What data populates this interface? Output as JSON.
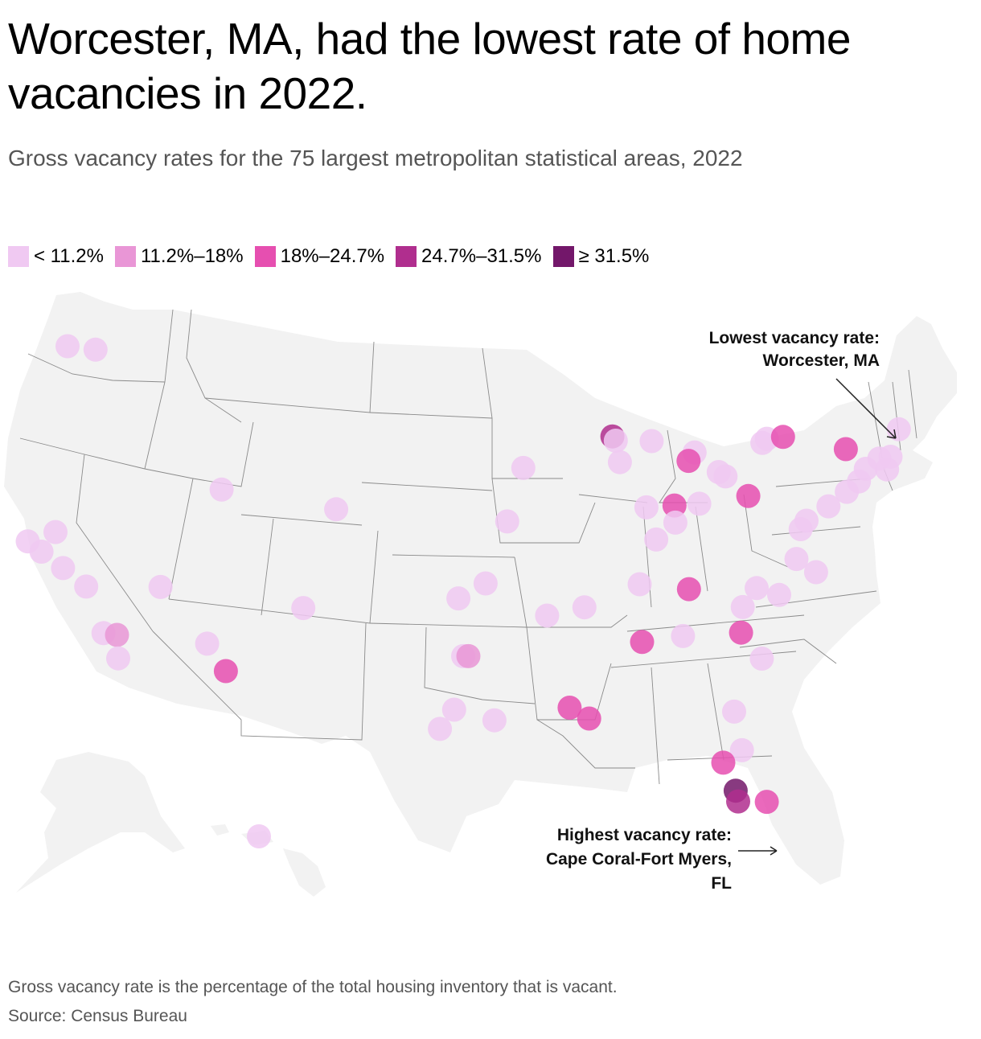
{
  "title": "Worcester, MA, had the lowest rate of home vacancies in 2022.",
  "subtitle": "Gross vacancy rates for the 75 largest metropolitan statistical areas, 2022",
  "legend": [
    {
      "label": "< 11.2%",
      "color": "#f0c9f2"
    },
    {
      "label": "11.2%–18%",
      "color": "#e996d6"
    },
    {
      "label": "18%–24.7%",
      "color": "#e64fb0"
    },
    {
      "label": "24.7%–31.5%",
      "color": "#b02e8e"
    },
    {
      "label": "≥ 31.5%",
      "color": "#73176a"
    }
  ],
  "annotations": {
    "lowest": {
      "line1": "Lowest vacancy rate:",
      "line2": "Worcester, MA"
    },
    "highest": {
      "line1": "Highest vacancy rate:",
      "line2": "Cape Coral-Fort Myers,",
      "line3": "FL"
    }
  },
  "map_data": {
    "type": "map",
    "region": "United States (contiguous, Alaska, Hawaii)",
    "metros": [
      {
        "lon": -122.3,
        "lat": 47.6,
        "cls": 0
      },
      {
        "lon": -120.5,
        "lat": 47.4,
        "cls": 0
      },
      {
        "lon": -123.3,
        "lat": 38.5,
        "cls": 0
      },
      {
        "lon": -121.7,
        "lat": 38.9,
        "cls": 0
      },
      {
        "lon": -122.4,
        "lat": 38.0,
        "cls": 0
      },
      {
        "lon": -121.0,
        "lat": 37.2,
        "cls": 0
      },
      {
        "lon": -119.5,
        "lat": 36.3,
        "cls": 0
      },
      {
        "lon": -118.2,
        "lat": 34.1,
        "cls": 0
      },
      {
        "lon": -117.4,
        "lat": 34.0,
        "cls": 1
      },
      {
        "lon": -117.2,
        "lat": 32.9,
        "cls": 0
      },
      {
        "lon": -115.1,
        "lat": 36.2,
        "cls": 0
      },
      {
        "lon": -111.9,
        "lat": 40.7,
        "cls": 0
      },
      {
        "lon": -112.1,
        "lat": 33.5,
        "cls": 0
      },
      {
        "lon": -110.9,
        "lat": 32.2,
        "cls": 2
      },
      {
        "lon": -104.9,
        "lat": 39.7,
        "cls": 0
      },
      {
        "lon": -106.6,
        "lat": 35.1,
        "cls": 0
      },
      {
        "lon": -94.6,
        "lat": 39.1,
        "cls": 0
      },
      {
        "lon": -97.5,
        "lat": 35.5,
        "cls": 0
      },
      {
        "lon": -95.9,
        "lat": 36.2,
        "cls": 0
      },
      {
        "lon": -97.2,
        "lat": 32.8,
        "cls": 0
      },
      {
        "lon": -96.9,
        "lat": 32.8,
        "cls": 1
      },
      {
        "lon": -95.4,
        "lat": 29.8,
        "cls": 0
      },
      {
        "lon": -97.7,
        "lat": 30.3,
        "cls": 0
      },
      {
        "lon": -98.5,
        "lat": 29.4,
        "cls": 0
      },
      {
        "lon": -93.6,
        "lat": 41.6,
        "cls": 0
      },
      {
        "lon": -92.3,
        "lat": 34.7,
        "cls": 0
      },
      {
        "lon": -90.1,
        "lat": 35.1,
        "cls": 0
      },
      {
        "lon": -91.1,
        "lat": 30.4,
        "cls": 2
      },
      {
        "lon": -90.0,
        "lat": 29.9,
        "cls": 2
      },
      {
        "lon": -88.1,
        "lat": 43.1,
        "cls": 3
      },
      {
        "lon": -87.9,
        "lat": 42.9,
        "cls": 0
      },
      {
        "lon": -87.7,
        "lat": 41.9,
        "cls": 0
      },
      {
        "lon": -85.7,
        "lat": 42.9,
        "cls": 0
      },
      {
        "lon": -83.1,
        "lat": 42.4,
        "cls": 0
      },
      {
        "lon": -83.5,
        "lat": 42.0,
        "cls": 2
      },
      {
        "lon": -81.7,
        "lat": 41.5,
        "cls": 0
      },
      {
        "lon": -81.3,
        "lat": 41.3,
        "cls": 0
      },
      {
        "lon": -86.2,
        "lat": 39.8,
        "cls": 0
      },
      {
        "lon": -84.5,
        "lat": 39.9,
        "cls": 2
      },
      {
        "lon": -84.5,
        "lat": 39.1,
        "cls": 0
      },
      {
        "lon": -83.0,
        "lat": 40.0,
        "cls": 0
      },
      {
        "lon": -85.7,
        "lat": 38.3,
        "cls": 0
      },
      {
        "lon": -86.8,
        "lat": 36.2,
        "cls": 0
      },
      {
        "lon": -83.9,
        "lat": 36.0,
        "cls": 2
      },
      {
        "lon": -86.8,
        "lat": 33.5,
        "cls": 2
      },
      {
        "lon": -84.4,
        "lat": 33.8,
        "cls": 0
      },
      {
        "lon": -80.0,
        "lat": 40.4,
        "cls": 2
      },
      {
        "lon": -78.9,
        "lat": 42.9,
        "cls": 0
      },
      {
        "lon": -78.6,
        "lat": 43.1,
        "cls": 0
      },
      {
        "lon": -77.6,
        "lat": 43.2,
        "cls": 2
      },
      {
        "lon": -73.8,
        "lat": 42.7,
        "cls": 2
      },
      {
        "lon": -71.8,
        "lat": 42.3,
        "cls": 0
      },
      {
        "lon": -71.1,
        "lat": 42.4,
        "cls": 0
      },
      {
        "lon": -70.4,
        "lat": 43.7,
        "cls": 0
      },
      {
        "lon": -72.7,
        "lat": 41.8,
        "cls": 0
      },
      {
        "lon": -71.4,
        "lat": 41.8,
        "cls": 0
      },
      {
        "lon": -73.2,
        "lat": 41.2,
        "cls": 0
      },
      {
        "lon": -74.0,
        "lat": 40.7,
        "cls": 0
      },
      {
        "lon": -75.2,
        "lat": 40.0,
        "cls": 0
      },
      {
        "lon": -76.6,
        "lat": 39.3,
        "cls": 0
      },
      {
        "lon": -77.0,
        "lat": 38.9,
        "cls": 0
      },
      {
        "lon": -77.4,
        "lat": 37.5,
        "cls": 0
      },
      {
        "lon": -76.3,
        "lat": 36.9,
        "cls": 0
      },
      {
        "lon": -80.8,
        "lat": 35.2,
        "cls": 0
      },
      {
        "lon": -79.9,
        "lat": 36.1,
        "cls": 0
      },
      {
        "lon": -78.6,
        "lat": 35.8,
        "cls": 0
      },
      {
        "lon": -81.0,
        "lat": 34.0,
        "cls": 2
      },
      {
        "lon": -79.9,
        "lat": 32.8,
        "cls": 0
      },
      {
        "lon": -81.7,
        "lat": 30.3,
        "cls": 0
      },
      {
        "lon": -81.4,
        "lat": 28.5,
        "cls": 0
      },
      {
        "lon": -82.5,
        "lat": 27.9,
        "cls": 2
      },
      {
        "lon": -81.9,
        "lat": 26.6,
        "cls": 4
      },
      {
        "lon": -81.8,
        "lat": 26.1,
        "cls": 3
      },
      {
        "lon": -80.2,
        "lat": 26.1,
        "cls": 2
      },
      {
        "lon": -157.9,
        "lat": 21.3,
        "cls": 0
      }
    ]
  }
}
